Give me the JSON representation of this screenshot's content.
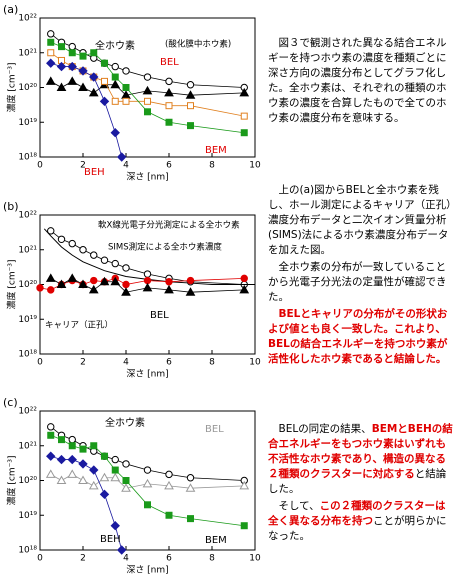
{
  "chart_data": [
    {
      "type": "scatter",
      "panel": "(a)",
      "xlabel": "深さ [nm]",
      "ylabel": "濃度 [cm⁻³]",
      "log_y": true,
      "xlim": [
        0,
        10
      ],
      "xticks": [
        0,
        2,
        4,
        6,
        8,
        10
      ],
      "ylim": [
        1e+18,
        1e+22
      ],
      "yticks": [
        {
          "value": 1e+18,
          "label": "10¹⁸"
        },
        {
          "value": 1e+19,
          "label": "10¹⁹"
        },
        {
          "value": 1e+20,
          "label": "10²⁰"
        },
        {
          "value": 1e+21,
          "label": "10²¹"
        },
        {
          "value": 1e+22,
          "label": "10²²"
        }
      ],
      "series": [
        {
          "name": "全ホウ素",
          "color": "#000000",
          "label_color": "#000000",
          "marker": "circle",
          "filled": false,
          "x": [
            0.5,
            1,
            1.5,
            2,
            2.5,
            3,
            3.5,
            4,
            5,
            6,
            7,
            9.5
          ],
          "values": [
            3.5e+21,
            2e+21,
            1.5e+21,
            1e+21,
            7e+20,
            5e+20,
            4e+20,
            3e+20,
            2e+20,
            1.5e+20,
            1.2e+20,
            1e+20
          ]
        },
        {
          "name": "(酸化膜中ホウ素)",
          "color": "#000000",
          "label_color": "#000000",
          "marker": "triangle",
          "filled": true,
          "x": [
            0.5,
            1,
            1.5,
            2,
            2.5,
            3,
            3.5,
            4,
            5,
            6,
            7,
            9.5
          ],
          "values": [
            1.5e+20,
            1e+20,
            1.5e+20,
            1e+20,
            7e+19,
            1.2e+20,
            1.2e+20,
            6e+19,
            8e+19,
            7e+19,
            6e+19,
            7e+19
          ]
        },
        {
          "name": "BEL",
          "color": "#e08020",
          "label_color": "#e00000",
          "marker": "square",
          "filled": false,
          "x": [
            0.5,
            1,
            1.5,
            2,
            2.5,
            3,
            3.5,
            4,
            5,
            6,
            7,
            9.5
          ],
          "values": [
            1e+21,
            6e+20,
            4e+20,
            3e+20,
            2e+20,
            1.5e+20,
            4e+19,
            4e+19,
            4e+19,
            3e+19,
            3e+19,
            1.5e+19
          ]
        },
        {
          "name": "BEM",
          "color": "#1a9a1a",
          "label_color": "#e00000",
          "marker": "square",
          "filled": true,
          "x": [
            0.5,
            1,
            1.5,
            2,
            2.5,
            3,
            3.5,
            4,
            5,
            6,
            7,
            9.5
          ],
          "values": [
            2e+21,
            1.5e+21,
            1e+21,
            8e+20,
            1e+21,
            5e+20,
            2e+20,
            1e+20,
            2e+19,
            1e+19,
            8e+18,
            5e+18
          ]
        },
        {
          "name": "BEH",
          "color": "#1a1aa0",
          "label_color": "#e00000",
          "marker": "diamond",
          "filled": true,
          "x": [
            0.5,
            1,
            1.5,
            2,
            2.5,
            3,
            3.5,
            3.8
          ],
          "values": [
            5e+20,
            4e+20,
            4e+20,
            3e+20,
            2e+20,
            4e+19,
            5e+18,
            1e+18
          ]
        }
      ]
    },
    {
      "type": "scatter",
      "panel": "(b)",
      "xlabel": "深さ [nm]",
      "ylabel": "濃度 [cm⁻³]",
      "log_y": true,
      "xlim": [
        0,
        10
      ],
      "xticks": [
        0,
        2,
        4,
        6,
        8,
        10
      ],
      "ylim": [
        1e+18,
        1e+22
      ],
      "yticks": [
        {
          "value": 1e+18,
          "label": "10¹⁸"
        },
        {
          "value": 1e+19,
          "label": "10¹⁹"
        },
        {
          "value": 1e+20,
          "label": "10²⁰"
        },
        {
          "value": 1e+21,
          "label": "10²¹"
        },
        {
          "value": 1e+22,
          "label": "10²²"
        }
      ],
      "series": [
        {
          "name": "軟X線光電子分光測定による全ホウ素",
          "color": "#000000",
          "label_color": "#000000",
          "marker": "circle",
          "filled": false,
          "x": [
            0.5,
            1,
            1.5,
            2,
            2.5,
            3,
            3.5,
            4,
            5,
            6,
            7,
            9.5
          ],
          "values": [
            3.5e+21,
            2e+21,
            1.5e+21,
            1e+21,
            7e+20,
            5e+20,
            4e+20,
            3e+20,
            2e+20,
            1.5e+20,
            1.2e+20,
            1e+20
          ]
        },
        {
          "name": "SIMS測定による全ホウ素濃度",
          "color": "#000000",
          "label_color": "#000000",
          "marker": "none",
          "filled": false,
          "x": [
            0.2,
            0.5,
            1,
            1.5,
            2,
            3,
            4,
            5,
            6,
            7,
            8,
            9,
            10
          ],
          "values": [
            4e+21,
            2.5e+21,
            1.2e+21,
            7e+20,
            4.5e+20,
            2.5e+20,
            1.7e+20,
            1.4e+20,
            1.2e+20,
            1.1e+20,
            1e+20,
            1e+20,
            1e+20
          ]
        },
        {
          "name": "キャリア（正孔）",
          "color": "#e00000",
          "label_color": "#000000",
          "marker": "circle",
          "filled": true,
          "x": [
            0,
            0.5,
            1,
            1.5,
            2,
            2.5,
            3,
            3.5,
            4,
            5,
            6,
            7,
            9.5
          ],
          "values": [
            8e+19,
            7e+19,
            1e+20,
            1.3e+20,
            1e+20,
            1.3e+20,
            1.2e+20,
            1.5e+20,
            1e+20,
            1.3e+20,
            1.2e+20,
            1.3e+20,
            1.5e+20
          ]
        },
        {
          "name": "BEL",
          "color": "#000000",
          "label_color": "#000000",
          "marker": "triangle",
          "filled": true,
          "x": [
            0.5,
            1,
            1.5,
            2,
            2.5,
            3,
            3.5,
            4,
            5,
            6,
            7,
            9.5
          ],
          "values": [
            1.5e+20,
            1e+20,
            1.5e+20,
            1e+20,
            7e+19,
            1.2e+20,
            1.2e+20,
            6e+19,
            8e+19,
            7e+19,
            6e+19,
            7e+19
          ]
        }
      ]
    },
    {
      "type": "scatter",
      "panel": "(c)",
      "xlabel": "深さ [nm]",
      "ylabel": "濃度 [cm⁻³]",
      "log_y": true,
      "xlim": [
        0,
        10
      ],
      "xticks": [
        0,
        2,
        4,
        6,
        8,
        10
      ],
      "ylim": [
        1e+18,
        1e+22
      ],
      "yticks": [
        {
          "value": 1e+18,
          "label": "10¹⁸"
        },
        {
          "value": 1e+19,
          "label": "10¹⁹"
        },
        {
          "value": 1e+20,
          "label": "10²⁰"
        },
        {
          "value": 1e+21,
          "label": "10²¹"
        },
        {
          "value": 1e+22,
          "label": "10²²"
        }
      ],
      "series": [
        {
          "name": "全ホウ素",
          "color": "#000000",
          "label_color": "#000000",
          "marker": "circle",
          "filled": false,
          "x": [
            0.5,
            1,
            1.5,
            2,
            2.5,
            3,
            3.5,
            4,
            5,
            6,
            7,
            9.5
          ],
          "values": [
            3.5e+21,
            2e+21,
            1.5e+21,
            1e+21,
            7e+20,
            5e+20,
            4e+20,
            3e+20,
            2e+20,
            1.5e+20,
            1.2e+20,
            1e+20
          ]
        },
        {
          "name": "BEL",
          "color": "#999999",
          "label_color": "#999999",
          "marker": "triangle",
          "filled": false,
          "x": [
            0.5,
            1,
            1.5,
            2,
            2.5,
            3,
            3.5,
            4,
            5,
            6,
            7,
            9.5
          ],
          "values": [
            1.5e+20,
            1e+20,
            1.5e+20,
            1e+20,
            7e+19,
            1.2e+20,
            1.2e+20,
            6e+19,
            8e+19,
            7e+19,
            6e+19,
            7e+19
          ]
        },
        {
          "name": "BEM",
          "color": "#1a9a1a",
          "label_color": "#000000",
          "marker": "square",
          "filled": true,
          "x": [
            0.5,
            1,
            1.5,
            2,
            2.5,
            3,
            3.5,
            4,
            5,
            6,
            7,
            9.5
          ],
          "values": [
            2e+21,
            1.5e+21,
            1e+21,
            8e+20,
            1e+21,
            5e+20,
            2e+20,
            1e+20,
            2e+19,
            1e+19,
            8e+18,
            5e+18
          ]
        },
        {
          "name": "BEH",
          "color": "#1a1aa0",
          "label_color": "#000000",
          "marker": "diamond",
          "filled": true,
          "x": [
            0.5,
            1,
            1.5,
            2,
            2.5,
            3,
            3.5,
            3.8
          ],
          "values": [
            5e+20,
            4e+20,
            4e+20,
            3e+20,
            2e+20,
            4e+19,
            5e+18,
            1e+18
          ]
        }
      ]
    }
  ],
  "notes": [
    [
      [
        {
          "text": "図３で観測された異なる結合エネルギーを持つホウ素の濃度を種類ごとに深さ方向の濃度分布としてグラフ化した。全ホウ素は、それぞれの種類のホウ素の濃度を合算したもので全てのホウ素の濃度分布を意味する。",
          "red": false
        }
      ]
    ],
    [
      [
        {
          "text": "上の(a)図からBELと全ホウ素を残し、ホール測定によるキャリア（正孔）濃度分布データと二次イオン質量分析(SIMS)法によるホウ素濃度分布データを加えた図。",
          "red": false
        }
      ],
      [
        {
          "text": "全ホウ素の分布が一致していることから光電子分光法の定量性が確認できた。",
          "red": false
        }
      ],
      [
        {
          "text": "BELとキャリアの分布がその形状および値とも良く一致した。これより、BELの結合エネルギーを持つホウ素が活性化したホウ素であると結論した。",
          "red": true
        }
      ]
    ],
    [
      [
        {
          "text": "BELの同定の結果、",
          "red": false
        },
        {
          "text": "BEMとBEHの結合エネルギーをもつホウ素はいずれも不活性なホウ素であり、構造の異なる２種類のクラスターに対応する",
          "red": true
        },
        {
          "text": "と結論した。",
          "red": false
        }
      ],
      [
        {
          "text": "そして、",
          "red": false
        },
        {
          "text": "この２種類のクラスターは全く異なる分布を持つ",
          "red": true
        },
        {
          "text": "ことが明らかになった。",
          "red": false
        }
      ]
    ]
  ]
}
